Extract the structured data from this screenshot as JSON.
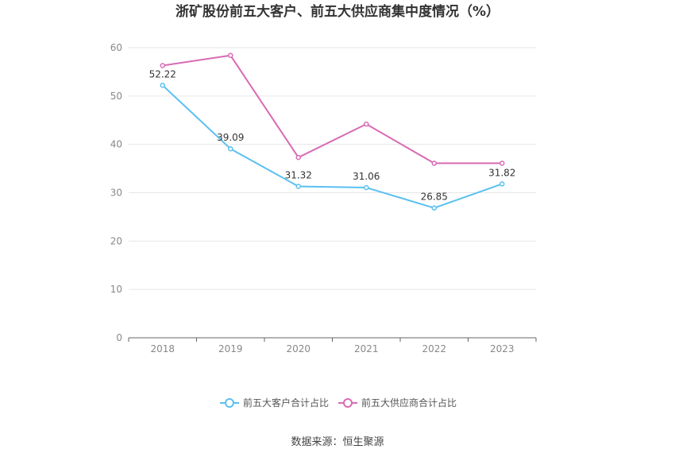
{
  "chart_data": {
    "type": "line",
    "title": "浙矿股份前五大客户、前五大供应商集中度情况（%）",
    "categories": [
      "2018",
      "2019",
      "2020",
      "2021",
      "2022",
      "2023"
    ],
    "ylim": [
      0,
      60
    ],
    "yticks": [
      "0",
      "10",
      "20",
      "30",
      "40",
      "50",
      "60"
    ],
    "grid": true,
    "legend_position": "bottom",
    "series": [
      {
        "name": "前五大客户合计占比",
        "color": "#5bc0f0",
        "values": [
          52.22,
          39.09,
          31.32,
          31.06,
          26.85,
          31.82
        ],
        "labels": [
          "52.22",
          "39.09",
          "31.32",
          "31.06",
          "26.85",
          "31.82"
        ]
      },
      {
        "name": "前五大供应商合计占比",
        "color": "#d86ab4",
        "values": [
          56.3,
          58.4,
          37.3,
          44.2,
          36.1,
          36.1
        ]
      }
    ]
  },
  "source": "数据来源：恒生聚源"
}
